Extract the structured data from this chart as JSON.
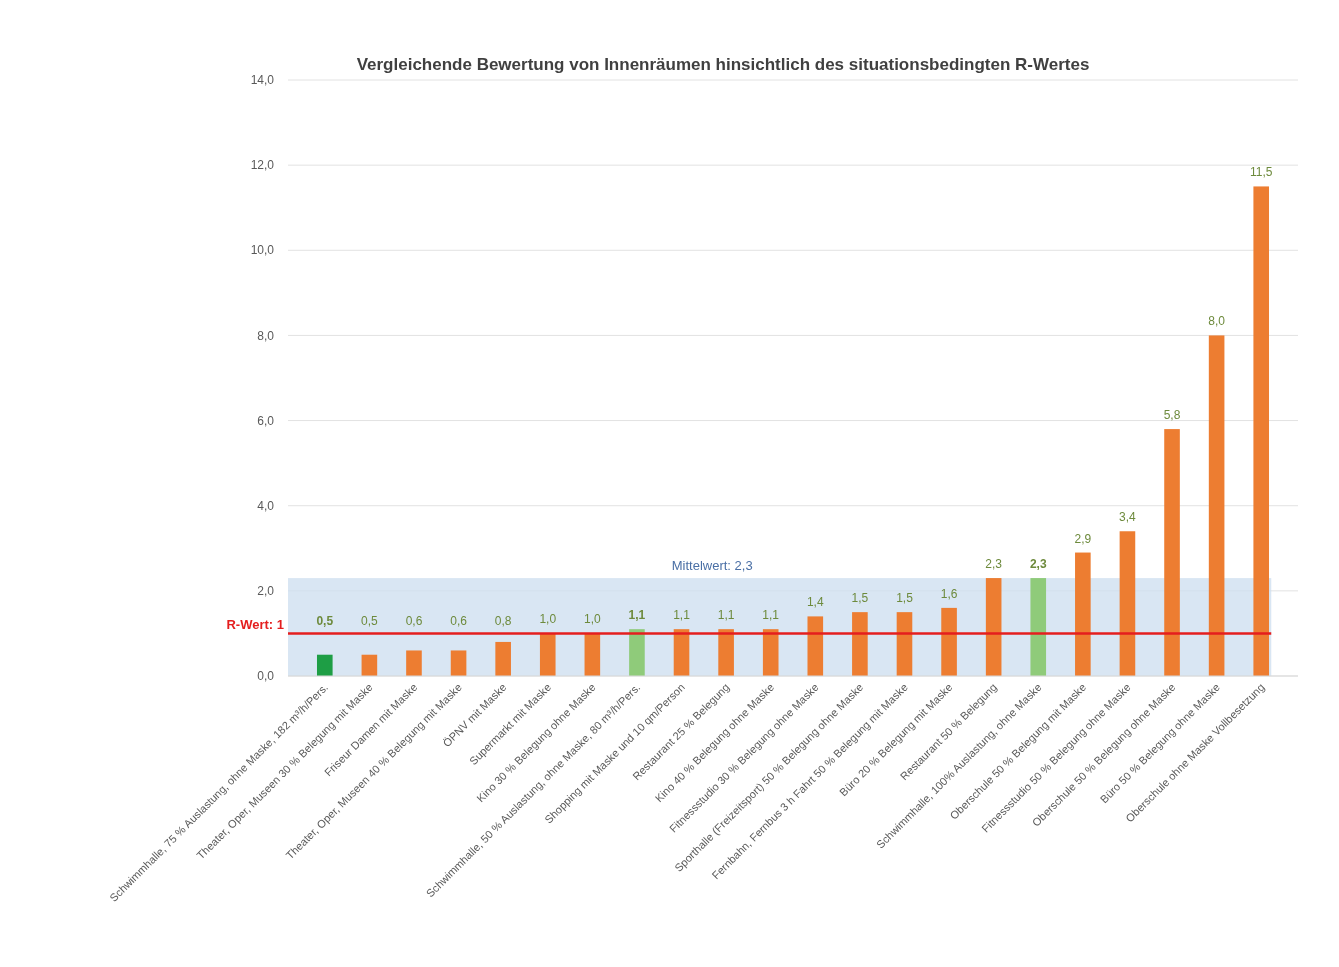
{
  "chart_data": {
    "type": "bar",
    "title": "Vergleichende Bewertung von Innenräumen hinsichtlich des situationsbedingten R-Wertes",
    "categories": [
      "Schwimmhalle, 75 % Auslastung, ohne Maske, 182 m³/h/Pers.",
      "Theater, Oper, Museen 30 % Belegung mit Maske",
      "Friseur Damen mit Maske",
      "Theater, Oper, Museen 40 % Belegung mit Maske",
      "ÖPNV mit Maske",
      "Supermarkt mit Maske",
      "Kino 30 % Belegung ohne Maske",
      "Schwimmhalle, 50 % Auslastung, ohne Maske, 80  m³/h/Pers.",
      "Shopping mit Maske und 10 qm/Person",
      "Restaurant 25 % Belegung",
      "Kino 40 % Belegung ohne Maske",
      "Fitnessstudio 30 % Belegung ohne Maske",
      "Sporthalle (Freizeitsport) 50 % Belegung ohne Maske",
      "Fernbahn, Fernbus 3 h Fahrt 50 % Belegung mit Maske",
      "Büro 20 % Belegung mit Maske",
      "Restaurant 50 % Belegung",
      "Schwimmhalle, 100% Auslastung, ohne Maske",
      "Oberschule 50 % Belegung mit Maske",
      "Fitnessstudio 50 % Belegung ohne Maske",
      "Oberschule 50 % Belegung ohne Maske",
      "Büro 50 % Belegung ohne Maske",
      "Oberschule ohne Maske Vollbesetzung"
    ],
    "values": [
      0.5,
      0.5,
      0.6,
      0.6,
      0.8,
      1.0,
      1.0,
      1.1,
      1.1,
      1.1,
      1.1,
      1.4,
      1.5,
      1.5,
      1.6,
      2.3,
      2.3,
      2.9,
      3.4,
      5.8,
      8.0,
      11.5
    ],
    "value_labels": [
      "0,5",
      "0,5",
      "0,6",
      "0,6",
      "0,8",
      "1,0",
      "1,0",
      "1,1",
      "1,1",
      "1,1",
      "1,1",
      "1,4",
      "1,5",
      "1,5",
      "1,6",
      "2,3",
      "2,3",
      "2,9",
      "3,4",
      "5,8",
      "8,0",
      "11,5"
    ],
    "colors": [
      "#1e9e45",
      "#ed7d31",
      "#ed7d31",
      "#ed7d31",
      "#ed7d31",
      "#ed7d31",
      "#ed7d31",
      "#8fcb7a",
      "#ed7d31",
      "#ed7d31",
      "#ed7d31",
      "#ed7d31",
      "#ed7d31",
      "#ed7d31",
      "#ed7d31",
      "#ed7d31",
      "#8fcb7a",
      "#ed7d31",
      "#ed7d31",
      "#ed7d31",
      "#ed7d31",
      "#ed7d31"
    ],
    "ylim": [
      0,
      14
    ],
    "yticks": [
      {
        "value": 0,
        "label": "0,0"
      },
      {
        "value": 2,
        "label": "2,0"
      },
      {
        "value": 4,
        "label": "4,0"
      },
      {
        "value": 6,
        "label": "6,0"
      },
      {
        "value": 8,
        "label": "8,0"
      },
      {
        "value": 10,
        "label": "10,0"
      },
      {
        "value": 12,
        "label": "12,0"
      },
      {
        "value": 14,
        "label": "14,0"
      }
    ],
    "grid": "y",
    "ref_lines": [
      {
        "axis": "y",
        "value": 1,
        "label": "R-Wert: 1",
        "color": "#e41e1e"
      }
    ],
    "bands": [
      {
        "axis": "y",
        "from": 0,
        "to": 2.3,
        "label": "Mittelwert: 2,3",
        "color": "#cfe0f0"
      }
    ]
  }
}
